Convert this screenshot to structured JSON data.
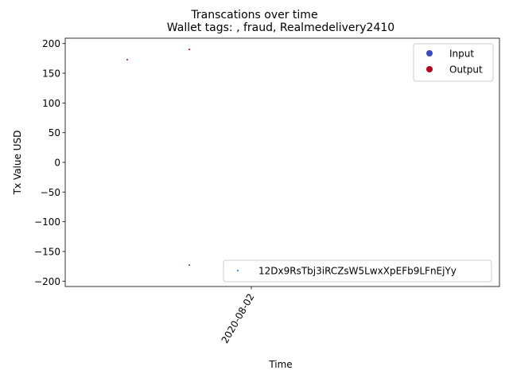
{
  "chart_data": {
    "type": "scatter",
    "suptitle": "Transcations over time",
    "title": "Wallet tags: , fraud, Realmedelivery2410",
    "xlabel": "Time",
    "ylabel": "Tx Value USD",
    "x_ticks": [
      "2020-08-02"
    ],
    "y_ticks": [
      200,
      150,
      100,
      50,
      0,
      -50,
      -100,
      -150,
      -200
    ],
    "ylim": [
      -209,
      209
    ],
    "grid": false,
    "series": [
      {
        "name": "Input",
        "color": "#3b4cc0",
        "points": [
          {
            "x": "2020-08-01",
            "y": -173
          }
        ]
      },
      {
        "name": "Output",
        "color": "#b40426",
        "points": [
          {
            "x": "2020-07-31",
            "y": 173
          },
          {
            "x": "2020-08-01",
            "y": 190
          }
        ]
      }
    ],
    "legend_upper": {
      "placement": "top-right",
      "entries": [
        {
          "label": "Input",
          "color": "#3b4cc0"
        },
        {
          "label": "Output",
          "color": "#b40426"
        }
      ]
    },
    "legend_lower": {
      "placement": "bottom-right",
      "entries": [
        {
          "label": "12Dx9RsTbj3iRCZsW5LwxXpEFb9LFnEjYy",
          "color": "#1f77b4"
        }
      ]
    }
  }
}
